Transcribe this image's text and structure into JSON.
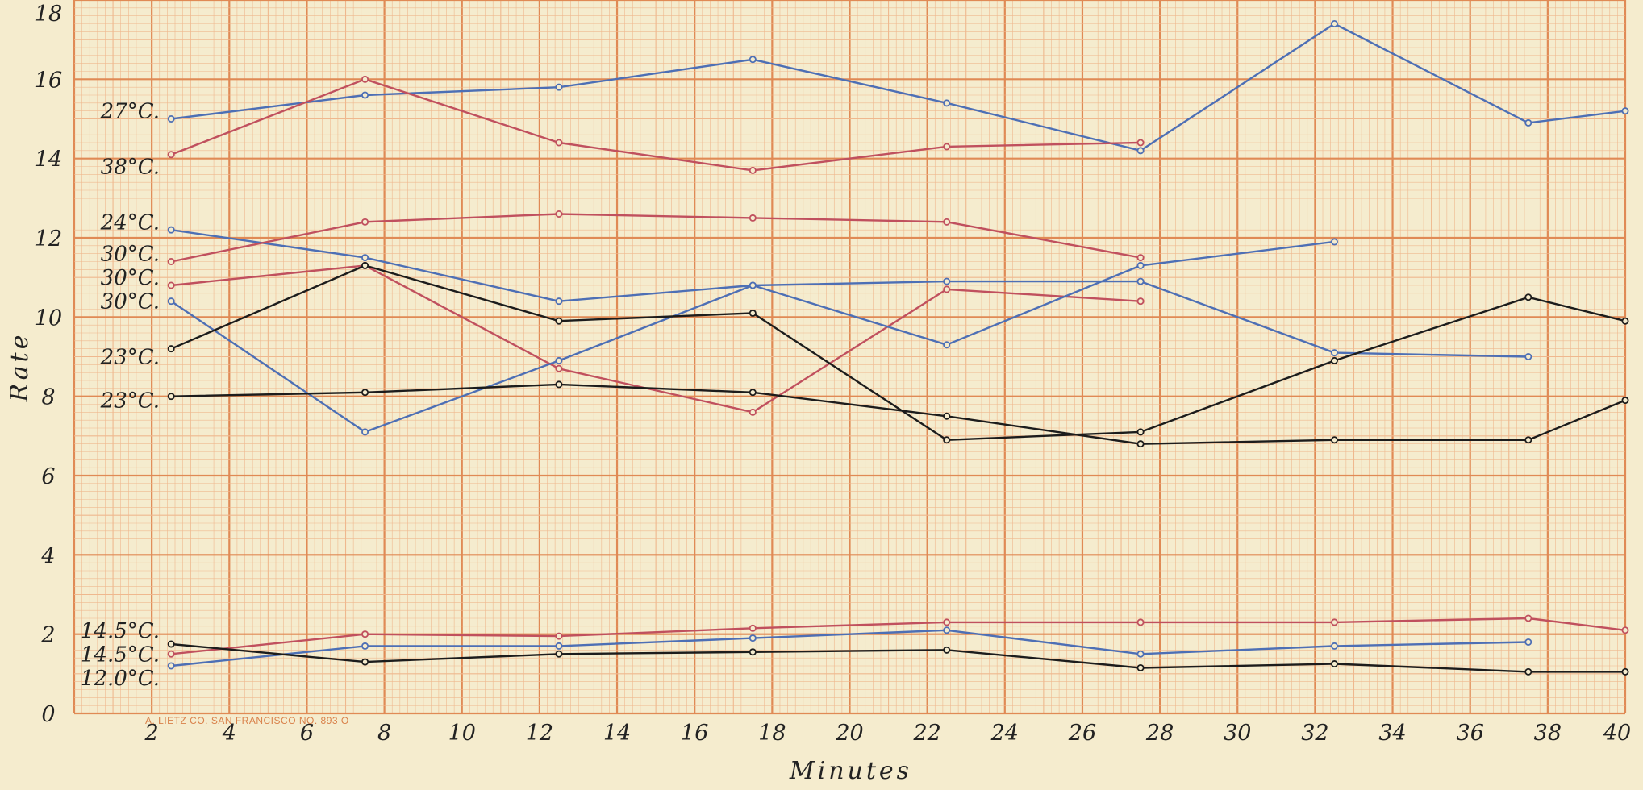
{
  "chart_data": {
    "type": "line",
    "title": "",
    "xlabel": "Minutes",
    "ylabel": "Rate",
    "xlim": [
      0,
      40
    ],
    "ylim": [
      0,
      18
    ],
    "x_ticks": [
      "2",
      "4",
      "6",
      "8",
      "10",
      "12",
      "14",
      "16",
      "18",
      "20",
      "22",
      "24",
      "26",
      "28",
      "30",
      "32",
      "34",
      "36",
      "38",
      "40"
    ],
    "y_ticks": [
      "0",
      "2",
      "4",
      "6",
      "8",
      "10",
      "12",
      "14",
      "16",
      "18"
    ],
    "grid": true,
    "imprint": "A. LIETZ CO. SAN FRANCISCO  NO. 893 O",
    "colors": {
      "blue": "#4d6fb5",
      "red": "#c0505e",
      "black": "#1c1c1c",
      "grid_major": "#e08a55",
      "grid_minor": "#efb88e",
      "paper": "#f5ecce"
    },
    "series": [
      {
        "name": "27°C.",
        "color": "blue",
        "label_y": 15.2,
        "x": [
          2.5,
          7.5,
          12.5,
          17.5,
          22.5,
          27.5,
          32.5,
          37.5,
          40
        ],
        "values": [
          15,
          15.6,
          15.8,
          16.5,
          15.4,
          14.2,
          17.4,
          14.9,
          15.2
        ]
      },
      {
        "name": "38°C.",
        "color": "red",
        "label_y": 13.8,
        "x": [
          2.5,
          7.5,
          12.5,
          17.5,
          22.5,
          27.5
        ],
        "values": [
          14.1,
          16,
          14.4,
          13.7,
          14.3,
          14.4
        ]
      },
      {
        "name": "24°C.",
        "color": "blue",
        "label_y": 12.4,
        "x": [
          2.5,
          7.5,
          12.5,
          17.5,
          22.5,
          27.5,
          32.5,
          37.5
        ],
        "values": [
          12.2,
          11.5,
          10.4,
          10.8,
          10.9,
          10.9,
          9.1,
          9
        ]
      },
      {
        "name": "30°C.",
        "color": "red",
        "label_y": 11.6,
        "x": [
          2.5,
          7.5,
          12.5,
          17.5,
          22.5,
          27.5
        ],
        "values": [
          11.4,
          12.4,
          12.6,
          12.5,
          12.4,
          11.5
        ]
      },
      {
        "name": "30°C.",
        "color": "red",
        "label_y": 11,
        "x": [
          2.5,
          7.5,
          12.5,
          17.5,
          22.5,
          27.5
        ],
        "values": [
          10.8,
          11.3,
          8.7,
          7.6,
          10.7,
          10.4
        ]
      },
      {
        "name": "30°C.",
        "color": "blue",
        "label_y": 10.4,
        "x": [
          2.5,
          7.5,
          12.5,
          17.5,
          22.5,
          27.5,
          32.5
        ],
        "values": [
          10.4,
          7.1,
          8.9,
          10.8,
          9.3,
          11.3,
          11.9
        ]
      },
      {
        "name": "23°C.",
        "color": "black",
        "label_y": 9,
        "x": [
          2.5,
          7.5,
          12.5,
          17.5,
          22.5,
          27.5,
          32.5,
          37.5,
          40
        ],
        "values": [
          9.2,
          11.3,
          9.9,
          10.1,
          6.9,
          7.1,
          8.9,
          10.5,
          9.9
        ]
      },
      {
        "name": "23°C.",
        "color": "black",
        "label_y": 7.9,
        "x": [
          2.5,
          7.5,
          12.5,
          17.5,
          22.5,
          27.5,
          32.5,
          37.5,
          40
        ],
        "values": [
          8,
          8.1,
          8.3,
          8.1,
          7.5,
          6.8,
          6.9,
          6.9,
          7.9
        ]
      },
      {
        "name": "14.5°C.",
        "color": "red",
        "label_y": 2.1,
        "x": [
          2.5,
          7.5,
          12.5,
          17.5,
          22.5,
          27.5,
          32.5,
          37.5,
          40
        ],
        "values": [
          1.5,
          2,
          1.95,
          2.15,
          2.3,
          2.3,
          2.3,
          2.4,
          2.1
        ]
      },
      {
        "name": "14.5°C.",
        "color": "blue",
        "label_y": 1.5,
        "x": [
          2.5,
          7.5,
          12.5,
          17.5,
          22.5,
          27.5,
          32.5,
          37.5
        ],
        "values": [
          1.2,
          1.7,
          1.7,
          1.9,
          2.1,
          1.5,
          1.7,
          1.8
        ]
      },
      {
        "name": "12.0°C.",
        "color": "black",
        "label_y": 0.9,
        "x": [
          2.5,
          7.5,
          12.5,
          17.5,
          22.5,
          27.5,
          32.5,
          37.5,
          40
        ],
        "values": [
          1.75,
          1.3,
          1.5,
          1.55,
          1.6,
          1.15,
          1.25,
          1.05,
          1.05
        ]
      }
    ]
  }
}
